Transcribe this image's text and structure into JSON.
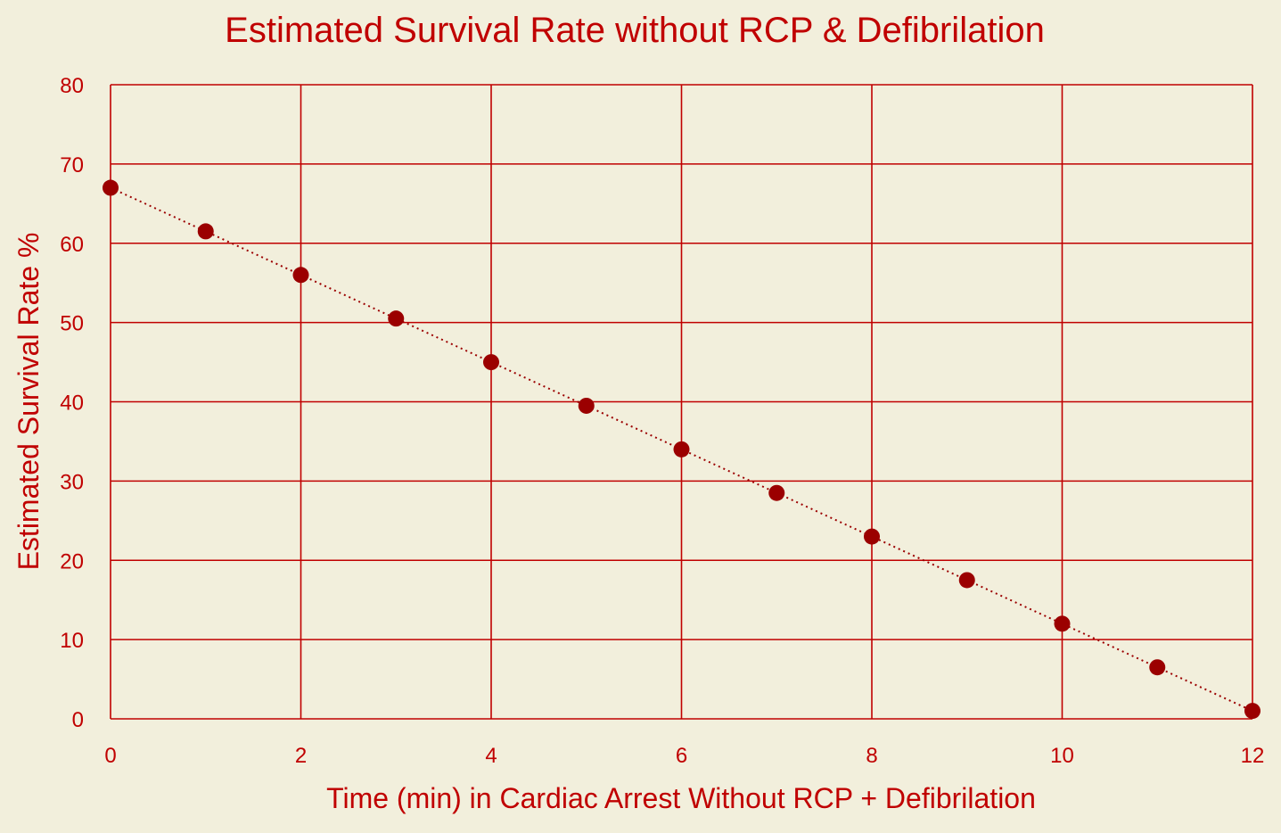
{
  "colors": {
    "background": "#f2efdc",
    "text": "#c00000",
    "grid": "#c00000",
    "marker": "#9b0000",
    "trendline": "#9b0000"
  },
  "chart_data": {
    "type": "scatter",
    "title": "Estimated Survival Rate without RCP & Defibrilation",
    "xlabel": "Time (min) in Cardiac Arrest Without RCP + Defibrilation",
    "ylabel": "Estimated Survival Rate %",
    "xlim": [
      0,
      12
    ],
    "ylim": [
      0,
      80
    ],
    "xticks": [
      0,
      2,
      4,
      6,
      8,
      10,
      12
    ],
    "yticks": [
      0,
      10,
      20,
      30,
      40,
      50,
      60,
      70,
      80
    ],
    "grid": true,
    "legend": "none",
    "trendline": "linear, dotted",
    "series": [
      {
        "x": [
          0,
          1,
          2,
          3,
          4,
          5,
          6,
          7,
          8,
          9,
          10,
          11,
          12
        ],
        "y": [
          67,
          61.5,
          56,
          50.5,
          45,
          39.5,
          34,
          28.5,
          23,
          17.5,
          12,
          6.5,
          1
        ]
      }
    ]
  }
}
